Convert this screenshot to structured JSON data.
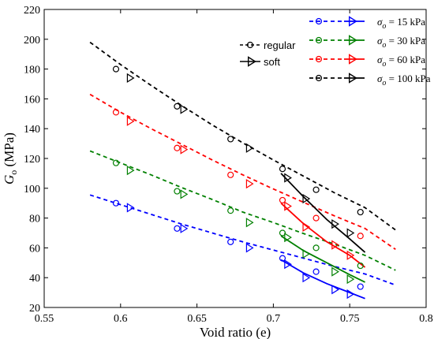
{
  "chart_data": {
    "type": "scatter",
    "xlabel": "Void ratio (e)",
    "ylabel_main": "G",
    "ylabel_sub": "o",
    "ylabel_unit": " (MPa)",
    "xlim": [
      0.55,
      0.8
    ],
    "ylim": [
      20,
      220
    ],
    "xticks": [
      0.55,
      0.6,
      0.65,
      0.7,
      0.75,
      0.8
    ],
    "xtick_labels": [
      "0.55",
      "0.6",
      "0.65",
      "0.7",
      "0.75",
      "0.8"
    ],
    "yticks": [
      20,
      40,
      60,
      80,
      100,
      120,
      140,
      160,
      180,
      200,
      220
    ],
    "ytick_labels": [
      "20",
      "40",
      "60",
      "80",
      "100",
      "120",
      "140",
      "160",
      "180",
      "200",
      "220"
    ],
    "marker_legend": [
      {
        "label": "regular",
        "marker": "circle"
      },
      {
        "label": "soft",
        "marker": "triangle"
      }
    ],
    "series": [
      {
        "name": "σo = 15 kPa",
        "legend_prefix": "σ",
        "legend_sub": "o",
        "legend_suffix": " = 15 kPa",
        "color": "#0000ff",
        "regular_points": [
          [
            0.597,
            90
          ],
          [
            0.637,
            73
          ],
          [
            0.672,
            64
          ],
          [
            0.706,
            53
          ],
          [
            0.728,
            44
          ],
          [
            0.757,
            34
          ]
        ],
        "soft_points": [
          [
            0.606,
            87
          ],
          [
            0.641,
            73
          ],
          [
            0.684,
            60
          ],
          [
            0.709,
            49
          ],
          [
            0.721,
            40
          ],
          [
            0.74,
            32
          ],
          [
            0.75,
            29
          ]
        ],
        "regular_fit": [
          [
            0.58,
            95.5
          ],
          [
            0.6,
            89
          ],
          [
            0.62,
            82.5
          ],
          [
            0.64,
            76
          ],
          [
            0.66,
            70
          ],
          [
            0.68,
            64
          ],
          [
            0.7,
            58.5
          ],
          [
            0.72,
            53
          ],
          [
            0.74,
            47.5
          ],
          [
            0.76,
            42.5
          ],
          [
            0.78,
            35
          ]
        ],
        "soft_fit": [
          [
            0.705,
            52
          ],
          [
            0.72,
            43
          ],
          [
            0.735,
            36
          ],
          [
            0.75,
            30
          ],
          [
            0.76,
            26
          ]
        ]
      },
      {
        "name": "σo = 30 kPa",
        "legend_prefix": "σ",
        "legend_sub": "o",
        "legend_suffix": " = 30 kPa",
        "color": "#008000",
        "regular_points": [
          [
            0.597,
            117
          ],
          [
            0.637,
            98
          ],
          [
            0.672,
            85
          ],
          [
            0.706,
            70
          ],
          [
            0.728,
            60
          ],
          [
            0.757,
            48
          ]
        ],
        "soft_points": [
          [
            0.606,
            112
          ],
          [
            0.641,
            96
          ],
          [
            0.684,
            77
          ],
          [
            0.709,
            67
          ],
          [
            0.721,
            56
          ],
          [
            0.74,
            44
          ],
          [
            0.75,
            39
          ]
        ],
        "regular_fit": [
          [
            0.58,
            125
          ],
          [
            0.6,
            117
          ],
          [
            0.62,
            109
          ],
          [
            0.64,
            100.5
          ],
          [
            0.66,
            92.5
          ],
          [
            0.68,
            84
          ],
          [
            0.7,
            77
          ],
          [
            0.72,
            69.5
          ],
          [
            0.74,
            62.5
          ],
          [
            0.76,
            55
          ],
          [
            0.78,
            45
          ]
        ],
        "soft_fit": [
          [
            0.705,
            68
          ],
          [
            0.72,
            58
          ],
          [
            0.735,
            50
          ],
          [
            0.75,
            42
          ],
          [
            0.76,
            37
          ]
        ]
      },
      {
        "name": "σo = 60 kPa",
        "legend_prefix": "σ",
        "legend_sub": "o",
        "legend_suffix": " = 60 kPa",
        "color": "#ff0000",
        "regular_points": [
          [
            0.597,
            151
          ],
          [
            0.637,
            127
          ],
          [
            0.672,
            109
          ],
          [
            0.706,
            92
          ],
          [
            0.728,
            80
          ],
          [
            0.757,
            68
          ]
        ],
        "soft_points": [
          [
            0.606,
            145
          ],
          [
            0.641,
            126
          ],
          [
            0.684,
            103
          ],
          [
            0.709,
            88
          ],
          [
            0.721,
            74
          ],
          [
            0.74,
            62
          ],
          [
            0.75,
            55
          ]
        ],
        "regular_fit": [
          [
            0.58,
            163
          ],
          [
            0.6,
            151
          ],
          [
            0.62,
            140
          ],
          [
            0.64,
            129.5
          ],
          [
            0.66,
            119
          ],
          [
            0.68,
            109
          ],
          [
            0.7,
            99.5
          ],
          [
            0.72,
            90.5
          ],
          [
            0.74,
            81.5
          ],
          [
            0.76,
            73
          ],
          [
            0.78,
            59
          ]
        ],
        "soft_fit": [
          [
            0.705,
            90
          ],
          [
            0.72,
            76
          ],
          [
            0.735,
            64
          ],
          [
            0.75,
            55
          ],
          [
            0.76,
            47
          ]
        ]
      },
      {
        "name": "σo = 100 kPa",
        "legend_prefix": "σ",
        "legend_sub": "o",
        "legend_suffix": " = 100 kPa",
        "color": "#000000",
        "regular_points": [
          [
            0.597,
            180
          ],
          [
            0.637,
            155
          ],
          [
            0.672,
            133
          ],
          [
            0.706,
            113
          ],
          [
            0.728,
            99
          ],
          [
            0.757,
            84
          ]
        ],
        "soft_points": [
          [
            0.606,
            174
          ],
          [
            0.641,
            153
          ],
          [
            0.684,
            127
          ],
          [
            0.709,
            107
          ],
          [
            0.721,
            93
          ],
          [
            0.74,
            76
          ],
          [
            0.75,
            70
          ]
        ],
        "regular_fit": [
          [
            0.58,
            198
          ],
          [
            0.6,
            183
          ],
          [
            0.62,
            169
          ],
          [
            0.64,
            155.5
          ],
          [
            0.66,
            142.5
          ],
          [
            0.68,
            130.5
          ],
          [
            0.7,
            119
          ],
          [
            0.72,
            108
          ],
          [
            0.74,
            97
          ],
          [
            0.76,
            87
          ],
          [
            0.78,
            72
          ]
        ],
        "soft_fit": [
          [
            0.705,
            110
          ],
          [
            0.72,
            94
          ],
          [
            0.735,
            79
          ],
          [
            0.75,
            66
          ],
          [
            0.76,
            57
          ]
        ]
      }
    ]
  }
}
